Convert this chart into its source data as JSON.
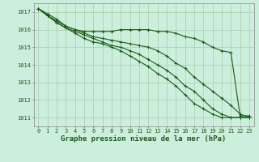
{
  "title": "Graphe pression niveau de la mer (hPa)",
  "background_color": "#cceedd",
  "grid_color": "#aaccaa",
  "line_color": "#1a5c1a",
  "marker_color": "#1a5c1a",
  "x_values": [
    0,
    1,
    2,
    3,
    4,
    5,
    6,
    7,
    8,
    9,
    10,
    11,
    12,
    13,
    14,
    15,
    16,
    17,
    18,
    19,
    20,
    21,
    22,
    23
  ],
  "series": [
    [
      1017.2,
      1016.9,
      1016.6,
      1016.2,
      1016.0,
      1015.9,
      1015.9,
      1015.9,
      1015.9,
      1016.0,
      1016.0,
      1016.0,
      1016.0,
      1015.9,
      1015.9,
      1015.8,
      1015.6,
      1015.5,
      1015.3,
      1015.0,
      1014.8,
      1014.7,
      1011.1,
      1011.1
    ],
    [
      1017.2,
      1016.8,
      1016.5,
      1016.2,
      1016.0,
      1015.8,
      1015.6,
      1015.5,
      1015.4,
      1015.3,
      1015.2,
      1015.1,
      1015.0,
      1014.8,
      1014.5,
      1014.1,
      1013.8,
      1013.3,
      1012.9,
      1012.5,
      1012.1,
      1011.7,
      1011.2,
      1011.0
    ],
    [
      1017.2,
      1016.8,
      1016.4,
      1016.1,
      1015.9,
      1015.7,
      1015.5,
      1015.3,
      1015.1,
      1015.0,
      1014.8,
      1014.6,
      1014.3,
      1014.0,
      1013.7,
      1013.3,
      1012.8,
      1012.5,
      1012.0,
      1011.5,
      1011.2,
      1011.0,
      1011.0,
      1011.0
    ],
    [
      1017.2,
      1016.8,
      1016.4,
      1016.1,
      1015.8,
      1015.5,
      1015.3,
      1015.2,
      1015.0,
      1014.8,
      1014.5,
      1014.2,
      1013.9,
      1013.5,
      1013.2,
      1012.8,
      1012.3,
      1011.8,
      1011.5,
      1011.2,
      1011.0,
      1011.0,
      1011.0,
      1011.0
    ]
  ],
  "ylim": [
    1010.5,
    1017.5
  ],
  "yticks": [
    1011,
    1012,
    1013,
    1014,
    1015,
    1016,
    1017
  ],
  "xlim": [
    -0.5,
    23.5
  ],
  "xticks": [
    0,
    1,
    2,
    3,
    4,
    5,
    6,
    7,
    8,
    9,
    10,
    11,
    12,
    13,
    14,
    15,
    16,
    17,
    18,
    19,
    20,
    21,
    22,
    23
  ],
  "marker": "+",
  "markersize": 3.5,
  "linewidth": 0.8,
  "title_fontsize": 6.5,
  "tick_fontsize": 5.0,
  "title_color": "#1a5c1a",
  "tick_color": "#1a5c1a",
  "spine_color": "#888888"
}
